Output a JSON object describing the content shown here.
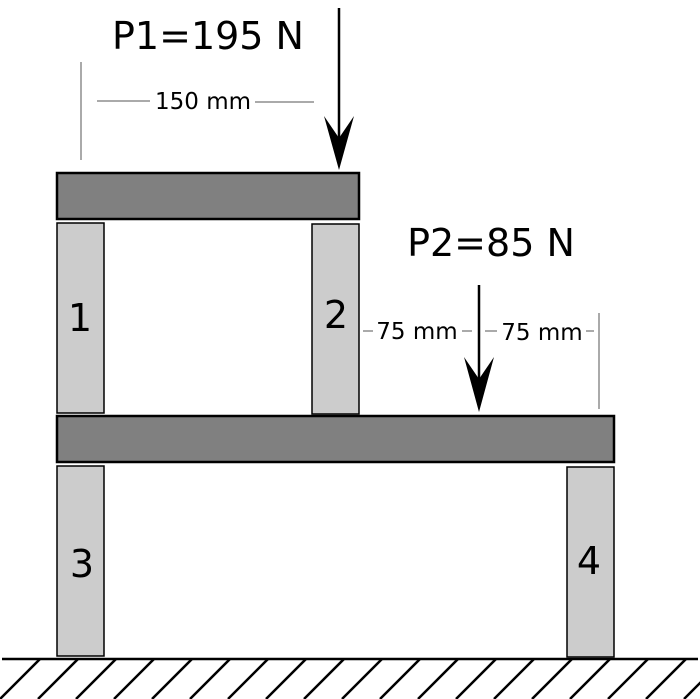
{
  "loads": {
    "p1": "P1=195 N",
    "p2": "P2=85 N"
  },
  "dimensions": {
    "d1": "150 mm",
    "d2": "75 mm",
    "d3": "75 mm"
  },
  "posts": {
    "post1": "1",
    "post2": "2",
    "post3": "3",
    "post4": "4"
  },
  "colors": {
    "beam": "#808080",
    "post": "#cccccc",
    "outline": "#000000",
    "dimension_line": "#555555"
  }
}
